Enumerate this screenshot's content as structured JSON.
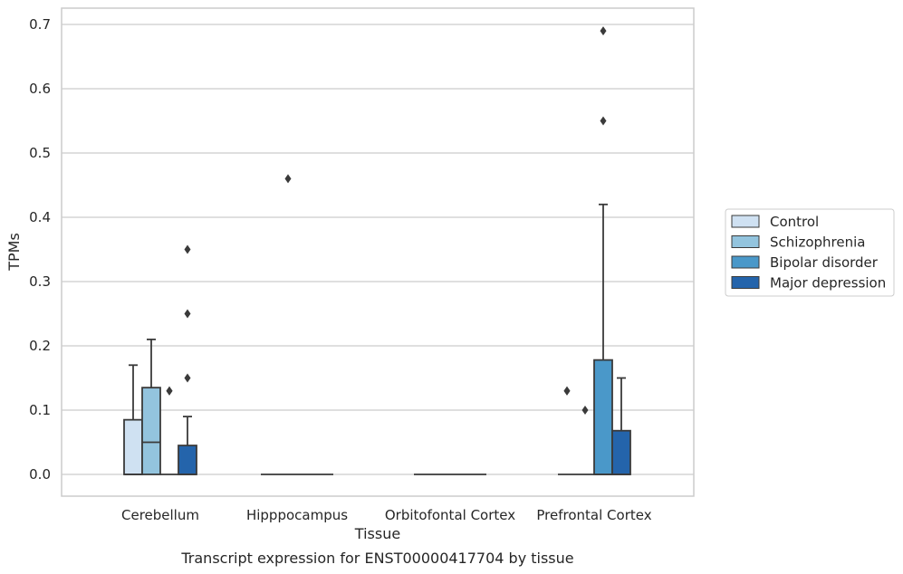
{
  "chart_data": {
    "type": "box",
    "title": "",
    "caption": "Transcript expression for ENST00000417704 by tissue",
    "xlabel": "Tissue",
    "ylabel": "TPMs",
    "ylim": [
      -0.034,
      0.725
    ],
    "yticks": [
      0.0,
      0.1,
      0.2,
      0.3,
      0.4,
      0.5,
      0.6,
      0.7
    ],
    "ytick_labels": [
      "0.0",
      "0.1",
      "0.2",
      "0.3",
      "0.4",
      "0.5",
      "0.6",
      "0.7"
    ],
    "grid": true,
    "legend_position": "right",
    "categories": [
      "Cerebellum",
      "Hipppocampus",
      "Orbitofontal Cortex",
      "Prefrontal Cortex"
    ],
    "series": [
      {
        "name": "Control",
        "color": "#cfe1f2",
        "boxes": [
          {
            "q1": 0.0,
            "median": 0.0,
            "q3": 0.085,
            "whislo": 0.0,
            "whishi": 0.17,
            "fliers": []
          },
          {
            "q1": 0.0,
            "median": 0.0,
            "q3": 0.0,
            "whislo": 0.0,
            "whishi": 0.0,
            "fliers": []
          },
          {
            "q1": 0.0,
            "median": 0.0,
            "q3": 0.0,
            "whislo": 0.0,
            "whishi": 0.0,
            "fliers": []
          },
          {
            "q1": 0.0,
            "median": 0.0,
            "q3": 0.0,
            "whislo": 0.0,
            "whishi": 0.0,
            "fliers": [
              0.13,
              0.13
            ]
          }
        ]
      },
      {
        "name": "Schizophrenia",
        "color": "#93c4de",
        "boxes": [
          {
            "q1": 0.0,
            "median": 0.05,
            "q3": 0.135,
            "whislo": 0.0,
            "whishi": 0.21,
            "fliers": []
          },
          {
            "q1": 0.0,
            "median": 0.0,
            "q3": 0.0,
            "whislo": 0.0,
            "whishi": 0.0,
            "fliers": [
              0.46
            ]
          },
          {
            "q1": 0.0,
            "median": 0.0,
            "q3": 0.0,
            "whislo": 0.0,
            "whishi": 0.0,
            "fliers": []
          },
          {
            "q1": 0.0,
            "median": 0.0,
            "q3": 0.0,
            "whislo": 0.0,
            "whishi": 0.0,
            "fliers": [
              0.1
            ]
          }
        ]
      },
      {
        "name": "Bipolar disorder",
        "color": "#4a98c9",
        "boxes": [
          {
            "q1": 0.0,
            "median": 0.0,
            "q3": 0.0,
            "whislo": 0.0,
            "whishi": 0.0,
            "fliers": [
              0.13,
              0.13
            ]
          },
          {
            "q1": 0.0,
            "median": 0.0,
            "q3": 0.0,
            "whislo": 0.0,
            "whishi": 0.0,
            "fliers": []
          },
          {
            "q1": 0.0,
            "median": 0.0,
            "q3": 0.0,
            "whislo": 0.0,
            "whishi": 0.0,
            "fliers": []
          },
          {
            "q1": 0.0,
            "median": 0.0,
            "q3": 0.178,
            "whislo": 0.0,
            "whishi": 0.42,
            "fliers": [
              0.55,
              0.69
            ]
          }
        ]
      },
      {
        "name": "Major depression",
        "color": "#2464ab",
        "boxes": [
          {
            "q1": 0.0,
            "median": 0.0,
            "q3": 0.045,
            "whislo": 0.0,
            "whishi": 0.09,
            "fliers": [
              0.15,
              0.25,
              0.35
            ]
          },
          {
            "q1": 0.0,
            "median": 0.0,
            "q3": 0.0,
            "whislo": 0.0,
            "whishi": 0.0,
            "fliers": []
          },
          {
            "q1": 0.0,
            "median": 0.0,
            "q3": 0.0,
            "whislo": 0.0,
            "whishi": 0.0,
            "fliers": []
          },
          {
            "q1": 0.0,
            "median": 0.0,
            "q3": 0.068,
            "whislo": 0.0,
            "whishi": 0.15,
            "fliers": []
          }
        ]
      }
    ]
  }
}
